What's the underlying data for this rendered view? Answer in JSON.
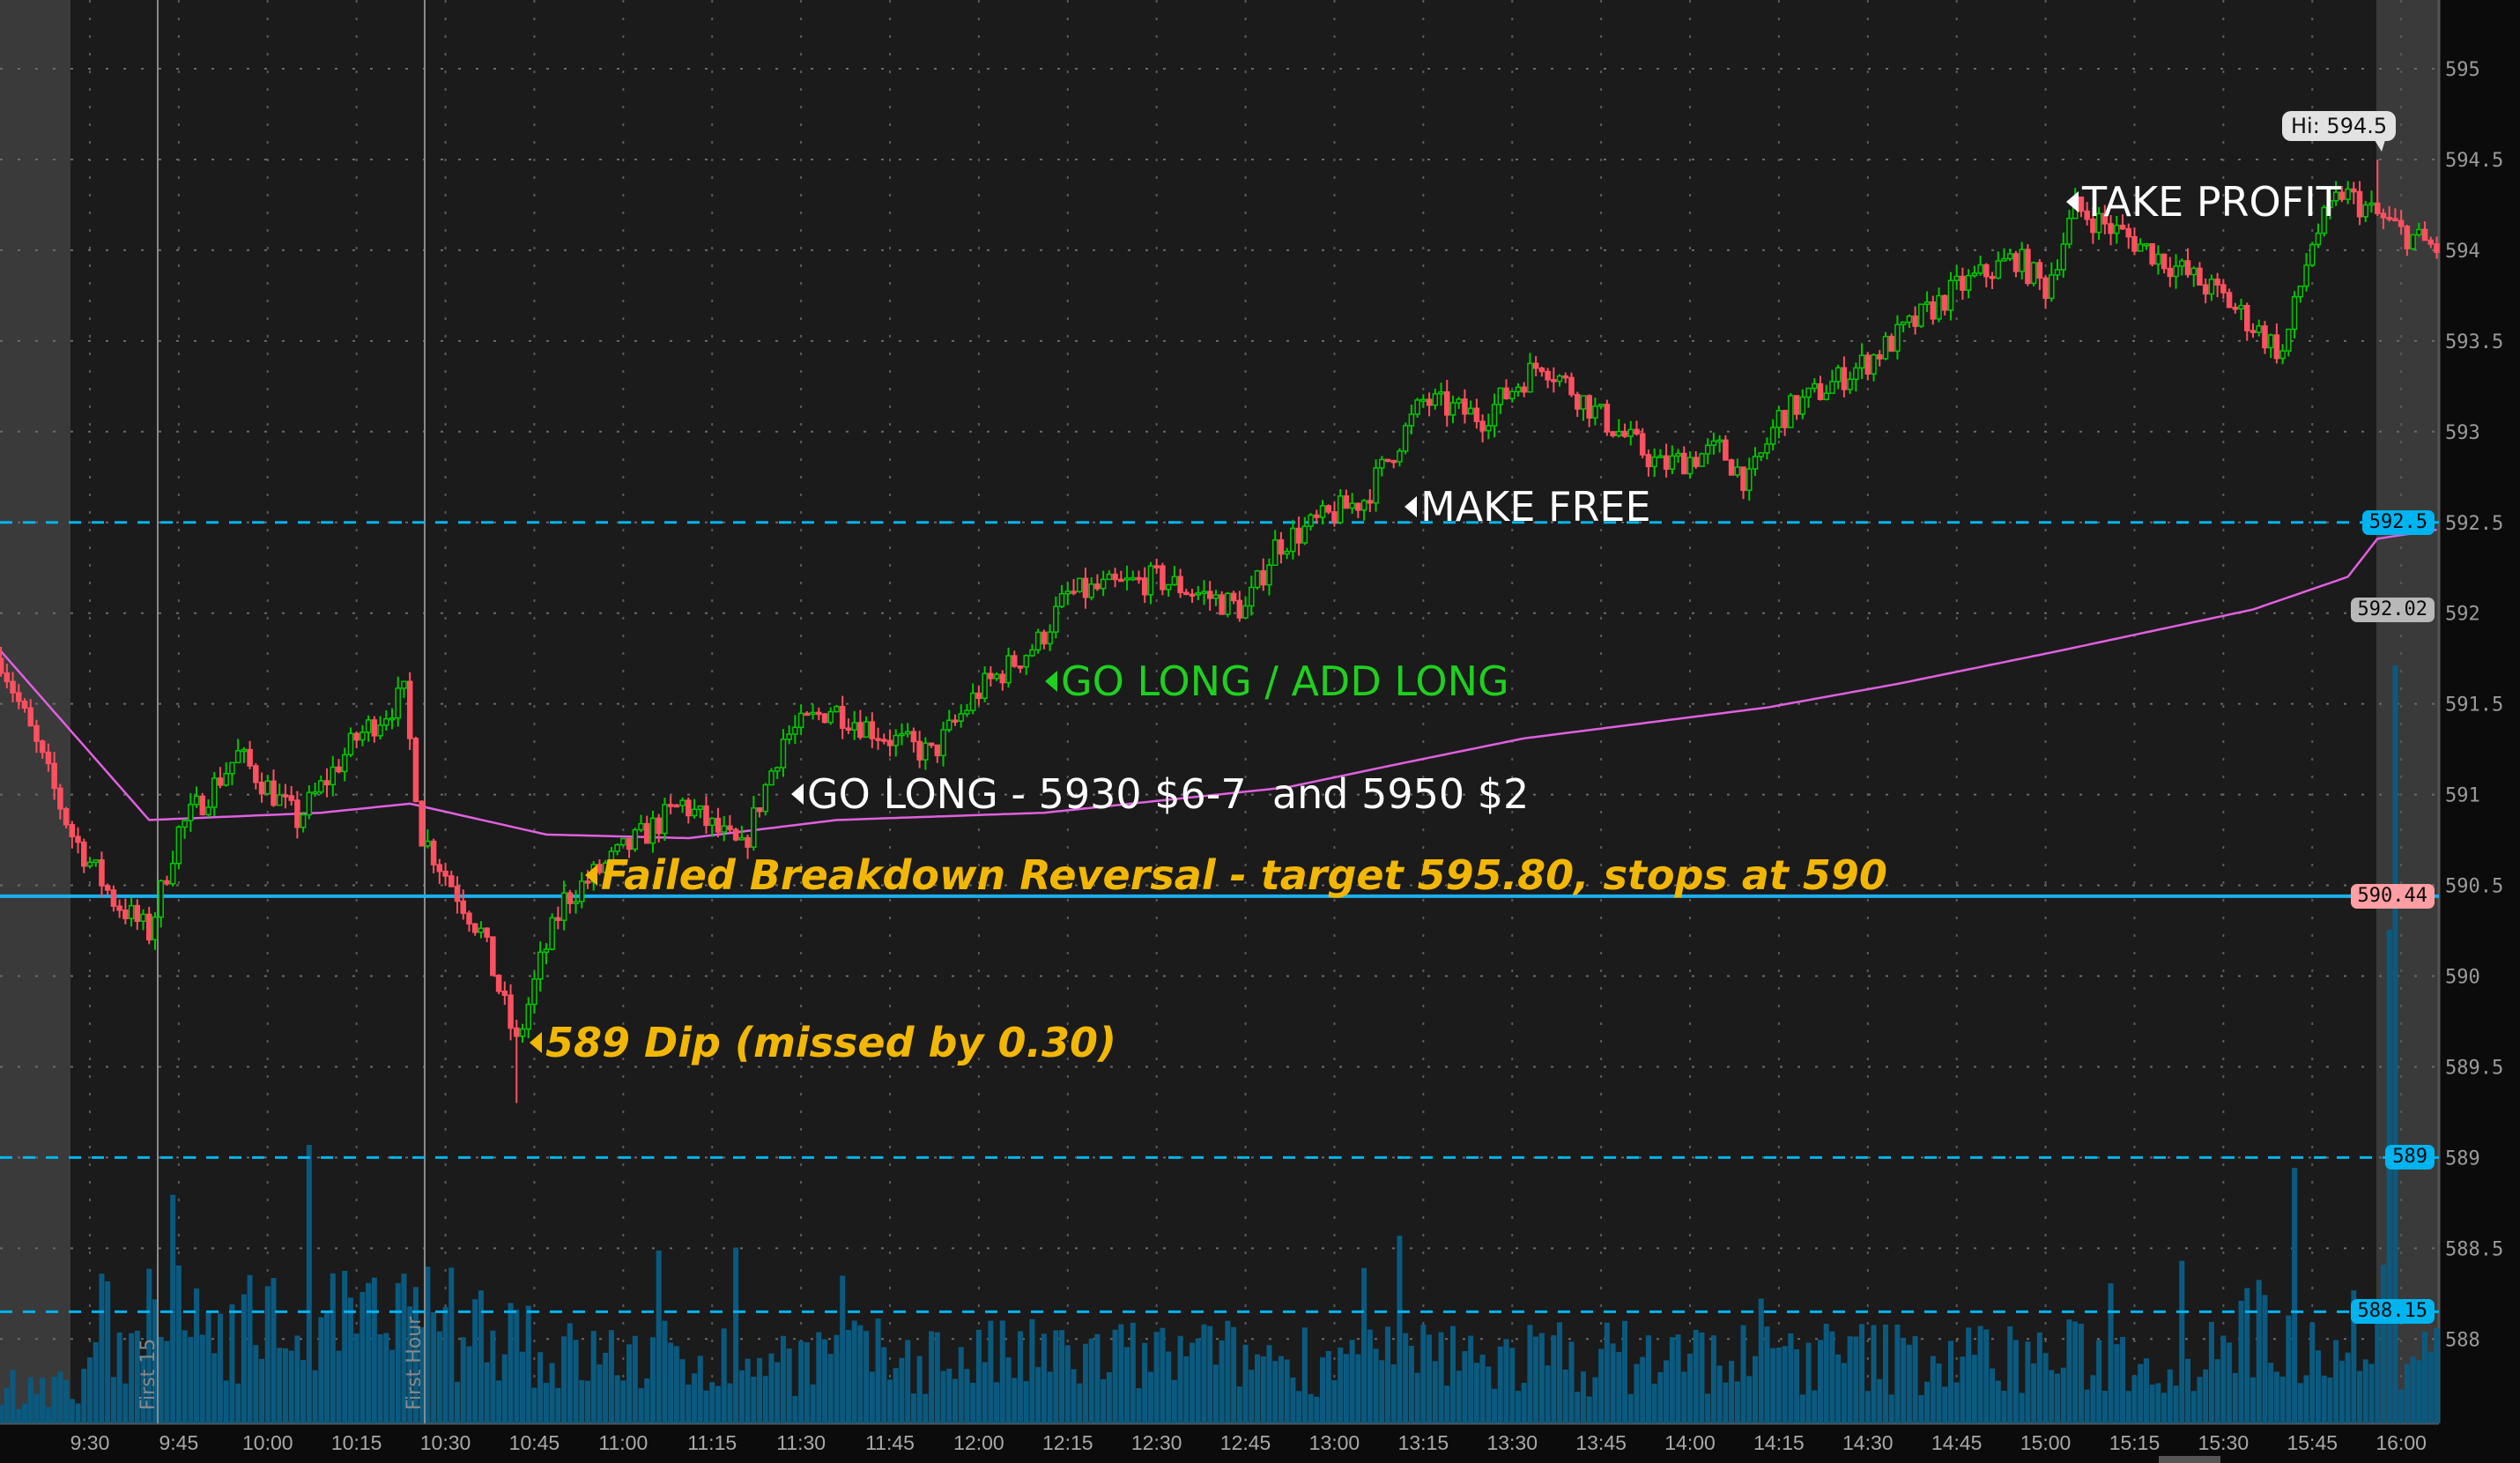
{
  "chart_data": {
    "type": "candlestick",
    "title": "",
    "x_ticks": [
      "9:30",
      "9:45",
      "10:00",
      "10:15",
      "10:30",
      "10:45",
      "11:00",
      "11:15",
      "11:30",
      "11:45",
      "12:00",
      "12:15",
      "12:30",
      "12:45",
      "13:00",
      "13:15",
      "13:30",
      "13:45",
      "14:00",
      "14:15",
      "14:30",
      "14:45",
      "15:00",
      "15:15",
      "15:30",
      "15:45",
      "16:00"
    ],
    "y_ticks": [
      "595",
      "594.5",
      "594",
      "593.5",
      "593",
      "592.5",
      "592",
      "591.5",
      "591",
      "590.5",
      "590",
      "589.5",
      "589",
      "588.5",
      "588"
    ],
    "ylim": [
      587.9,
      595.3
    ],
    "grid": true,
    "price_path": [
      [
        "9:15",
        591.75
      ],
      [
        "9:27",
        590.78
      ],
      [
        "9:34",
        590.42
      ],
      [
        "9:40",
        590.24
      ],
      [
        "9:45",
        590.8
      ],
      [
        "9:55",
        591.22
      ],
      [
        "10:05",
        590.86
      ],
      [
        "10:15",
        591.31
      ],
      [
        "10:23",
        591.55
      ],
      [
        "10:26",
        590.78
      ],
      [
        "10:36",
        590.24
      ],
      [
        "10:42",
        589.62
      ],
      [
        "10:46",
        590.07
      ],
      [
        "10:50",
        590.42
      ],
      [
        "11:00",
        590.69
      ],
      [
        "11:10",
        590.95
      ],
      [
        "11:20",
        590.69
      ],
      [
        "11:27",
        591.31
      ],
      [
        "11:35",
        591.48
      ],
      [
        "11:45",
        591.31
      ],
      [
        "11:52",
        591.22
      ],
      [
        "12:00",
        591.57
      ],
      [
        "12:10",
        591.84
      ],
      [
        "12:15",
        592.1
      ],
      [
        "12:30",
        592.19
      ],
      [
        "12:45",
        592.02
      ],
      [
        "12:50",
        592.37
      ],
      [
        "13:00",
        592.55
      ],
      [
        "13:05",
        592.63
      ],
      [
        "13:15",
        593.17
      ],
      [
        "13:25",
        593.08
      ],
      [
        "13:35",
        593.39
      ],
      [
        "13:45",
        593.08
      ],
      [
        "13:55",
        592.81
      ],
      [
        "14:05",
        592.9
      ],
      [
        "14:10",
        592.72
      ],
      [
        "14:15",
        593.08
      ],
      [
        "14:30",
        593.39
      ],
      [
        "14:45",
        593.79
      ],
      [
        "14:55",
        593.96
      ],
      [
        "15:00",
        593.79
      ],
      [
        "15:05",
        594.23
      ],
      [
        "15:15",
        594.05
      ],
      [
        "15:30",
        593.74
      ],
      [
        "15:40",
        593.43
      ],
      [
        "15:45",
        594.05
      ],
      [
        "15:50",
        594.32
      ],
      [
        "16:00",
        594.1
      ],
      [
        "16:06",
        594.01
      ]
    ],
    "vwap": [
      [
        "9:15",
        591.79
      ],
      [
        "9:40",
        590.86
      ],
      [
        "10:09",
        590.9
      ],
      [
        "10:24",
        590.95
      ],
      [
        "10:47",
        590.78
      ],
      [
        "11:11",
        590.76
      ],
      [
        "11:36",
        590.86
      ],
      [
        "12:11",
        590.9
      ],
      [
        "12:52",
        591.04
      ],
      [
        "13:11",
        591.17
      ],
      [
        "13:32",
        591.31
      ],
      [
        "14:13",
        591.48
      ],
      [
        "14:35",
        591.61
      ],
      [
        "15:02",
        591.79
      ],
      [
        "15:35",
        592.02
      ],
      [
        "15:51",
        592.2
      ],
      [
        "15:56",
        592.41
      ],
      [
        "16:06",
        592.46
      ]
    ],
    "high": 594.5,
    "low": 589.3,
    "levels": [
      {
        "price": 592.5,
        "label": "592.5",
        "style": "dashed",
        "color": "#00b4f0"
      },
      {
        "price": 590.44,
        "label": "590.44",
        "style": "solid",
        "color": "#1ab0ee",
        "tag_color": "#ff9ea3"
      },
      {
        "price": 589,
        "label": "589",
        "style": "dashed",
        "color": "#00b4f0"
      },
      {
        "price": 588.15,
        "label": "588.15",
        "style": "dashed",
        "color": "#00b4f0"
      }
    ],
    "vwap_tag": {
      "label": "592.02",
      "color": "#b8b8b8"
    },
    "colors": {
      "up": "#00c800",
      "down": "#ff5060",
      "vwap": "#e060e0",
      "volume": "#0a5a80",
      "background": "#1b1b1b",
      "session_shade": "#3a3a3a"
    }
  },
  "hi_label": "Hi: 594.5",
  "markers": {
    "first15": "First 15",
    "first_hour": "First Hour"
  },
  "annotations": {
    "take_profit": "TAKE PROFIT",
    "make_free": "MAKE FREE",
    "add_long": "GO LONG / ADD LONG",
    "go_long": "GO LONG - 5930 $6-7  and 5950 $2",
    "failed_breakdown": "Failed Breakdown Reversal - target 595.80, stops at 590",
    "dip": "589 Dip (missed by 0.30)"
  }
}
